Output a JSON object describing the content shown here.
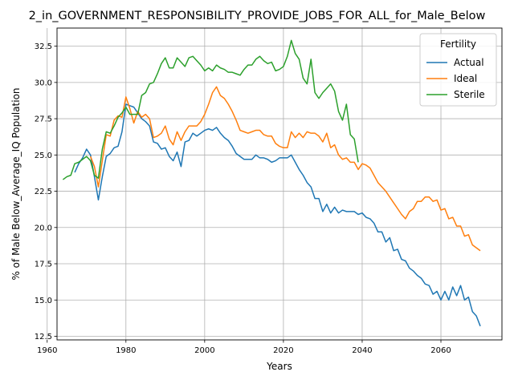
{
  "chart_data": {
    "type": "line",
    "title": "2_in_GOVERNMENT_RESPONSIBILITY_PROVIDE_JOBS_FOR_ALL_for_Male_Below",
    "xlabel": "Years",
    "ylabel": "% of Male Below_Average_IQ Population",
    "xlim": [
      1962.5,
      2075.5
    ],
    "ylim": [
      12.25,
      33.75
    ],
    "xticks": [
      1960,
      1980,
      2000,
      2020,
      2040,
      2060
    ],
    "yticks": [
      12.5,
      15.0,
      17.5,
      20.0,
      22.5,
      25.0,
      27.5,
      30.0,
      32.5
    ],
    "xtick_labels": [
      "1960",
      "1980",
      "2000",
      "2020",
      "2040",
      "2060"
    ],
    "ytick_labels": [
      "12.5",
      "15.0",
      "17.5",
      "20.0",
      "22.5",
      "25.0",
      "27.5",
      "30.0",
      "32.5"
    ],
    "grid": true,
    "legend": {
      "title": "Fertility",
      "position": "upper-right"
    },
    "series": [
      {
        "name": "Actual",
        "color": "#1f77b4",
        "x": [
          1967,
          1968,
          1969,
          1970,
          1971,
          1972,
          1973,
          1974,
          1975,
          1976,
          1977,
          1978,
          1979,
          1980,
          1981,
          1982,
          1983,
          1984,
          1985,
          1986,
          1987,
          1988,
          1989,
          1990,
          1991,
          1992,
          1993,
          1994,
          1995,
          1996,
          1997,
          1998,
          1999,
          2000,
          2001,
          2002,
          2003,
          2004,
          2005,
          2006,
          2007,
          2008,
          2009,
          2010,
          2011,
          2012,
          2013,
          2014,
          2015,
          2016,
          2017,
          2018,
          2019,
          2020,
          2021,
          2022,
          2023,
          2024,
          2025,
          2026,
          2027,
          2028,
          2029,
          2030,
          2031,
          2032,
          2033,
          2034,
          2035,
          2036,
          2037,
          2038,
          2039,
          2040,
          2041,
          2042,
          2043,
          2044,
          2045,
          2046,
          2047,
          2048,
          2049,
          2050,
          2051,
          2052,
          2053,
          2054,
          2055,
          2056,
          2057,
          2058,
          2059,
          2060,
          2061,
          2062,
          2063,
          2064,
          2065,
          2066,
          2067,
          2068,
          2069,
          2070
        ],
        "y": [
          23.8,
          24.4,
          24.8,
          25.4,
          25.0,
          23.5,
          21.9,
          23.5,
          24.9,
          25.1,
          25.5,
          25.6,
          26.6,
          28.5,
          28.4,
          28.3,
          27.9,
          27.5,
          27.3,
          27.0,
          25.9,
          25.8,
          25.4,
          25.5,
          24.9,
          24.6,
          25.2,
          24.2,
          25.9,
          26.0,
          26.5,
          26.3,
          26.5,
          26.7,
          26.8,
          26.7,
          26.9,
          26.5,
          26.2,
          26.0,
          25.6,
          25.1,
          24.9,
          24.7,
          24.7,
          24.7,
          25.0,
          24.8,
          24.8,
          24.7,
          24.5,
          24.6,
          24.8,
          24.8,
          24.8,
          25.0,
          24.5,
          24.0,
          23.6,
          23.1,
          22.8,
          22.0,
          22.0,
          21.1,
          21.6,
          21.0,
          21.4,
          21.0,
          21.2,
          21.1,
          21.1,
          21.1,
          20.9,
          21.0,
          20.7,
          20.6,
          20.3,
          19.7,
          19.7,
          19.0,
          19.3,
          18.4,
          18.5,
          17.8,
          17.7,
          17.2,
          17.0,
          16.7,
          16.5,
          16.1,
          16.0,
          15.4,
          15.6,
          15.0,
          15.6,
          15.0,
          15.9,
          15.3,
          16.0,
          15.0,
          15.2,
          14.2,
          13.9,
          13.2
        ]
      },
      {
        "name": "Ideal",
        "color": "#ff7f0e",
        "x": [
          1971,
          1972,
          1973,
          1974,
          1975,
          1976,
          1977,
          1978,
          1979,
          1980,
          1981,
          1982,
          1983,
          1984,
          1985,
          1986,
          1987,
          1988,
          1989,
          1990,
          1991,
          1992,
          1993,
          1994,
          1995,
          1996,
          1997,
          1998,
          1999,
          2000,
          2001,
          2002,
          2003,
          2004,
          2005,
          2006,
          2007,
          2008,
          2009,
          2010,
          2011,
          2012,
          2013,
          2014,
          2015,
          2016,
          2017,
          2018,
          2019,
          2020,
          2021,
          2022,
          2023,
          2024,
          2025,
          2026,
          2027,
          2028,
          2029,
          2030,
          2031,
          2032,
          2033,
          2034,
          2035,
          2036,
          2037,
          2038,
          2039,
          2040,
          2041,
          2042,
          2043,
          2044,
          2045,
          2046,
          2047,
          2048,
          2049,
          2050,
          2051,
          2052,
          2053,
          2054,
          2055,
          2056,
          2057,
          2058,
          2059,
          2060,
          2061,
          2062,
          2063,
          2064,
          2065,
          2066,
          2067,
          2068,
          2069,
          2070
        ],
        "y": [
          24.9,
          24.2,
          22.8,
          24.6,
          26.4,
          26.3,
          27.4,
          27.7,
          27.6,
          29.0,
          28.2,
          27.2,
          28.0,
          27.6,
          27.8,
          27.5,
          26.2,
          26.3,
          26.5,
          27.0,
          26.1,
          25.7,
          26.6,
          26.0,
          26.6,
          27.0,
          27.0,
          27.0,
          27.3,
          27.8,
          28.5,
          29.3,
          29.7,
          29.1,
          28.9,
          28.5,
          28.0,
          27.4,
          26.7,
          26.6,
          26.5,
          26.6,
          26.7,
          26.7,
          26.4,
          26.3,
          26.3,
          25.8,
          25.6,
          25.5,
          25.5,
          26.6,
          26.2,
          26.5,
          26.2,
          26.6,
          26.5,
          26.5,
          26.3,
          25.9,
          26.5,
          25.5,
          25.7,
          25.0,
          24.7,
          24.8,
          24.5,
          24.5,
          24.0,
          24.4,
          24.3,
          24.1,
          23.6,
          23.1,
          22.8,
          22.5,
          22.1,
          21.7,
          21.3,
          20.9,
          20.6,
          21.1,
          21.3,
          21.8,
          21.8,
          22.1,
          22.1,
          21.8,
          21.9,
          21.2,
          21.3,
          20.6,
          20.7,
          20.1,
          20.1,
          19.4,
          19.5,
          18.8,
          18.6,
          18.4
        ]
      },
      {
        "name": "Sterile",
        "color": "#2ca02c",
        "x": [
          1964,
          1965,
          1966,
          1967,
          1968,
          1969,
          1970,
          1971,
          1972,
          1973,
          1974,
          1975,
          1976,
          1977,
          1978,
          1979,
          1980,
          1981,
          1982,
          1983,
          1984,
          1985,
          1986,
          1987,
          1988,
          1989,
          1990,
          1991,
          1992,
          1993,
          1994,
          1995,
          1996,
          1997,
          1998,
          1999,
          2000,
          2001,
          2002,
          2003,
          2004,
          2005,
          2006,
          2007,
          2008,
          2009,
          2010,
          2011,
          2012,
          2013,
          2014,
          2015,
          2016,
          2017,
          2018,
          2019,
          2020,
          2021,
          2022,
          2023,
          2024,
          2025,
          2026,
          2027,
          2028,
          2029,
          2030,
          2031,
          2032,
          2033,
          2034,
          2035,
          2036,
          2037,
          2038,
          2039
        ],
        "y": [
          23.3,
          23.5,
          23.6,
          24.4,
          24.5,
          24.7,
          24.9,
          24.6,
          23.6,
          23.4,
          25.4,
          26.6,
          26.5,
          27.0,
          27.6,
          27.9,
          28.3,
          27.8,
          27.8,
          27.8,
          29.1,
          29.3,
          29.9,
          30.0,
          30.6,
          31.3,
          31.7,
          31.0,
          31.0,
          31.7,
          31.4,
          31.1,
          31.7,
          31.8,
          31.5,
          31.2,
          30.8,
          31.0,
          30.8,
          31.2,
          31.0,
          30.9,
          30.7,
          30.7,
          30.6,
          30.5,
          30.9,
          31.2,
          31.2,
          31.6,
          31.8,
          31.5,
          31.3,
          31.4,
          30.8,
          30.9,
          31.1,
          31.8,
          32.9,
          32.0,
          31.6,
          30.3,
          29.9,
          31.6,
          29.3,
          28.9,
          29.3,
          29.6,
          29.9,
          29.4,
          28.0,
          27.4,
          28.5,
          26.4,
          26.1,
          24.5
        ]
      }
    ]
  }
}
